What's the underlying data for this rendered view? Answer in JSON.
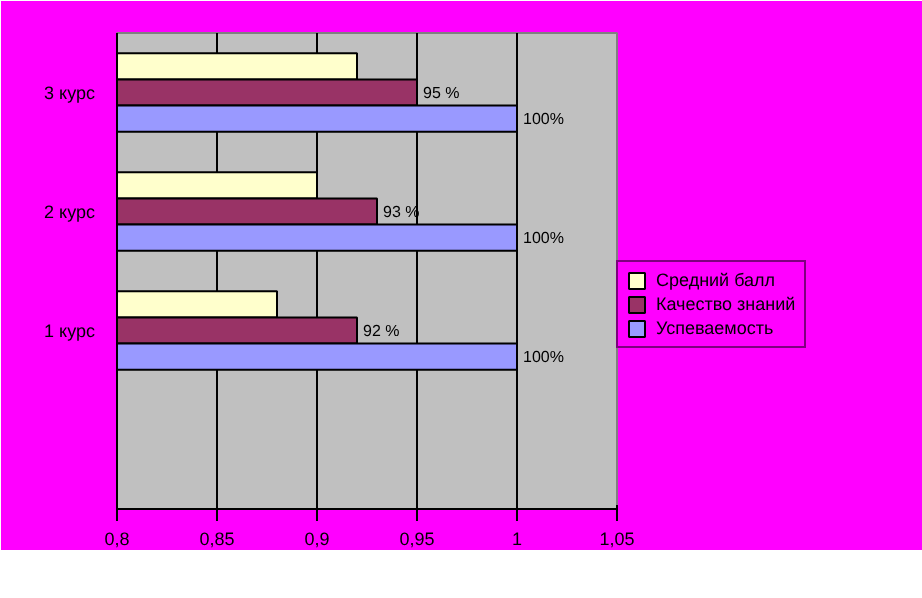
{
  "chart_data": {
    "type": "bar",
    "orientation": "horizontal",
    "categories": [
      "3 курс",
      "2 курс",
      "1 курс",
      null
    ],
    "series": [
      {
        "name": "Средний балл",
        "color": "#ffffcc",
        "values": [
          0.92,
          0.9,
          0.88,
          null
        ]
      },
      {
        "name": "Качество знаний",
        "color": "#993366",
        "values": [
          0.95,
          0.93,
          0.92,
          null
        ],
        "value_labels": [
          "95 %",
          "93 %",
          "92 %",
          null
        ]
      },
      {
        "name": "Успеваемость",
        "color": "#9999ff",
        "values": [
          1,
          1,
          1,
          null
        ],
        "value_labels": [
          "100%",
          "100%",
          "100%",
          null
        ]
      }
    ],
    "xlim": [
      0.8,
      1.05
    ],
    "xticks": [
      {
        "value": 0.8,
        "label": "0,8"
      },
      {
        "value": 0.85,
        "label": "0,85"
      },
      {
        "value": 0.9,
        "label": "0,9"
      },
      {
        "value": 0.95,
        "label": "0,95"
      },
      {
        "value": 1,
        "label": "1"
      },
      {
        "value": 1.05,
        "label": "1,05"
      }
    ],
    "grid": "x",
    "legend": "right"
  }
}
